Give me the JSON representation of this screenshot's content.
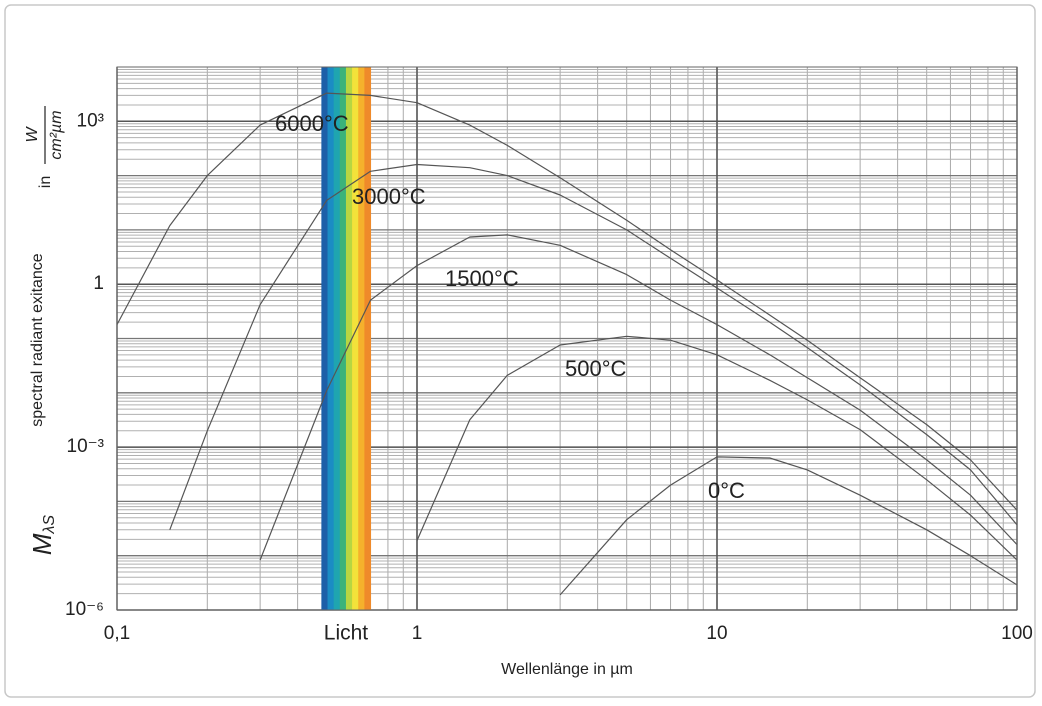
{
  "chart_data": {
    "type": "line",
    "x_label": "Wellenlänge in µm",
    "y_label": "spectral radiant exitance",
    "y_unit": {
      "prefix": "in",
      "numerator": "W",
      "denominator": "cm²µm"
    },
    "y_symbol": "M",
    "y_symbol_sub": "λS",
    "x": [
      0.1,
      0.15,
      0.2,
      0.3,
      0.5,
      0.7,
      1,
      1.5,
      2,
      3,
      5,
      7,
      10,
      15,
      20,
      30,
      50,
      70,
      100
    ],
    "series": [
      {
        "name": "6000°C",
        "color": "#555555",
        "values": [
          0.18,
          12,
          100,
          850,
          3300,
          3000,
          2200,
          850,
          360,
          91,
          15,
          4.3,
          1.2,
          0.27,
          0.093,
          0.019,
          0.0026,
          0.00058,
          6.9e-05
        ]
      },
      {
        "name": "3000°C",
        "color": "#555555",
        "values": [
          null,
          3e-05,
          0.002,
          0.42,
          35,
          120,
          160,
          140,
          100,
          44,
          10,
          3.0,
          0.85,
          0.2,
          0.068,
          0.014,
          0.0017,
          0.00038,
          3.7e-05
        ]
      },
      {
        "name": "1500°C",
        "color": "#555555",
        "values": [
          null,
          null,
          null,
          8.3e-06,
          0.011,
          0.51,
          2.2,
          7.4,
          8.1,
          5.2,
          1.5,
          0.51,
          0.18,
          0.05,
          0.019,
          0.0048,
          0.00058,
          0.00013,
          1.6e-05
        ]
      },
      {
        "name": "500°C",
        "color": "#555555",
        "values": [
          null,
          null,
          null,
          null,
          null,
          null,
          1.9e-05,
          0.0032,
          0.021,
          0.076,
          0.11,
          0.093,
          0.05,
          0.017,
          0.0074,
          0.0021,
          0.00025,
          5.6e-05,
          8.3e-06
        ]
      },
      {
        "name": "0°C",
        "color": "#555555",
        "values": [
          null,
          null,
          null,
          null,
          null,
          null,
          null,
          null,
          null,
          1.9e-06,
          4.6e-05,
          0.0002,
          0.00066,
          0.00063,
          0.00038,
          0.00013,
          3e-05,
          1e-05,
          2.9e-06
        ]
      }
    ],
    "band": {
      "label": "Licht",
      "range": [
        0.48,
        0.7
      ],
      "colors": [
        "#1d5fa8",
        "#1b8cc4",
        "#1fa5b0",
        "#3bb37a",
        "#b7d642",
        "#f3e23a",
        "#f5b12c",
        "#ef8a2a"
      ]
    },
    "xlim": [
      0.1,
      100
    ],
    "ylim": [
      1e-06,
      10000
    ],
    "xticks": [
      {
        "value": 0.1,
        "label": "0,1"
      },
      1,
      10,
      100
    ],
    "yticks": [
      {
        "value": 1e-06,
        "label": "10⁻⁶"
      },
      {
        "value": 0.001,
        "label": "10⁻³"
      },
      1,
      {
        "value": 1000,
        "label": "10³"
      }
    ],
    "x_scale": "log",
    "y_scale": "log",
    "grid": {
      "major": true,
      "minor": true
    }
  }
}
